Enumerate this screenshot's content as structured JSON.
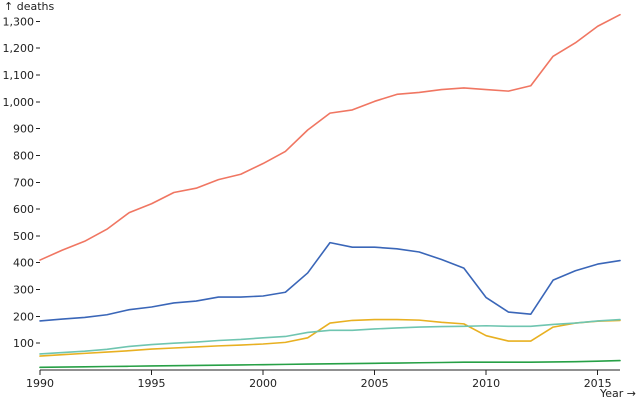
{
  "chart_data": {
    "type": "line",
    "title": "",
    "xlabel": "Year →",
    "ylabel": "↑ deaths",
    "xlim": [
      1990,
      2016
    ],
    "ylim": [
      0,
      1350
    ],
    "grid": false,
    "legend": "none",
    "x_ticks": [
      1990,
      1995,
      2000,
      2005,
      2010,
      2015
    ],
    "y_ticks": [
      100,
      200,
      300,
      400,
      500,
      600,
      700,
      800,
      900,
      1000,
      1100,
      1200,
      1300
    ],
    "x": [
      1990,
      1991,
      1992,
      1993,
      1994,
      1995,
      1996,
      1997,
      1998,
      1999,
      2000,
      2001,
      2002,
      2003,
      2004,
      2005,
      2006,
      2007,
      2008,
      2009,
      2010,
      2011,
      2012,
      2013,
      2014,
      2015,
      2016
    ],
    "series": [
      {
        "color": "#f07662",
        "values": [
          410,
          447,
          480,
          525,
          587,
          620,
          662,
          678,
          710,
          730,
          770,
          815,
          895,
          958,
          970,
          1002,
          1028,
          1035,
          1046,
          1052,
          1046,
          1040,
          1060,
          1170,
          1220,
          1282,
          1325
        ]
      },
      {
        "color": "#3a66b8",
        "values": [
          183,
          190,
          196,
          206,
          225,
          235,
          250,
          257,
          272,
          272,
          276,
          290,
          362,
          475,
          458,
          458,
          452,
          440,
          412,
          380,
          270,
          216,
          208,
          335,
          370,
          395,
          408
        ]
      },
      {
        "color": "#e8b021",
        "values": [
          52,
          57,
          62,
          67,
          72,
          78,
          82,
          86,
          90,
          93,
          97,
          103,
          120,
          175,
          185,
          188,
          188,
          186,
          178,
          172,
          128,
          108,
          108,
          160,
          175,
          182,
          185
        ]
      },
      {
        "color": "#6fc5b0",
        "values": [
          60,
          65,
          70,
          77,
          88,
          95,
          100,
          104,
          110,
          114,
          120,
          125,
          140,
          148,
          148,
          153,
          157,
          160,
          162,
          163,
          165,
          163,
          163,
          170,
          175,
          183,
          188
        ]
      },
      {
        "color": "#27a046",
        "values": [
          10,
          11,
          12,
          13,
          14,
          15,
          16,
          17,
          18,
          19,
          20,
          21,
          22,
          23,
          24,
          25,
          26,
          27,
          28,
          29,
          29,
          29,
          29,
          30,
          31,
          33,
          35
        ]
      }
    ]
  }
}
